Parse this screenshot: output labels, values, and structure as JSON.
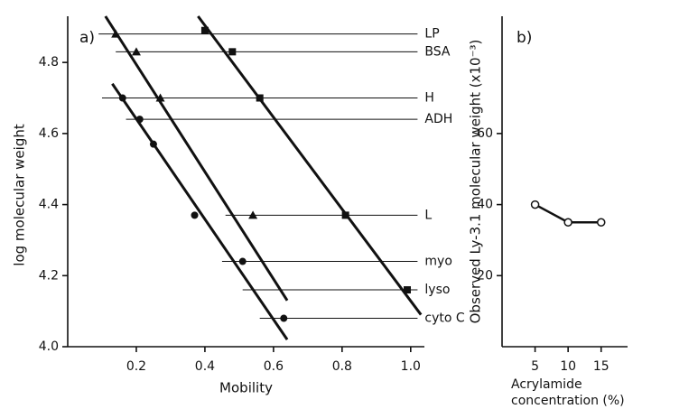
{
  "chart_data": [
    {
      "type": "scatter",
      "panel_label": "a)",
      "xlabel": "Mobility",
      "ylabel": "log molecular weight",
      "xlim": [
        0,
        1.04
      ],
      "ylim": [
        4.0,
        4.93
      ],
      "xticks": [
        0.2,
        0.4,
        0.6,
        0.8,
        {
          "value": 1,
          "label": "1.0"
        }
      ],
      "yticks": [
        {
          "value": 4,
          "label": "4.0"
        },
        4.2,
        4.4,
        4.6,
        4.8
      ],
      "series": [
        {
          "marker": "triangle",
          "color": "#111",
          "x": [
            0.14,
            0.2,
            0.27,
            0.54
          ],
          "values": [
            4.88,
            4.83,
            4.7,
            4.37
          ]
        },
        {
          "marker": "square",
          "color": "#111",
          "x": [
            0.4,
            0.48,
            0.56,
            0.81,
            0.99
          ],
          "values": [
            4.89,
            4.83,
            4.7,
            4.37,
            4.16
          ]
        },
        {
          "marker": "circle",
          "color": "#111",
          "x": [
            0.16,
            0.21,
            0.25,
            0.37,
            0.51,
            0.63
          ],
          "values": [
            4.7,
            4.64,
            4.57,
            4.37,
            4.24,
            4.08
          ]
        }
      ],
      "fit_lines": [
        {
          "x": [
            0.11,
            0.64
          ],
          "values": [
            4.93,
            4.13
          ]
        },
        {
          "x": [
            0.38,
            1.03
          ],
          "values": [
            4.93,
            4.09
          ]
        },
        {
          "x": [
            0.13,
            0.64
          ],
          "values": [
            4.74,
            4.02
          ]
        }
      ],
      "reference_lines": [
        {
          "label": "LP",
          "y": 4.88,
          "x": [
            0.09,
            1.02
          ]
        },
        {
          "label": "BSA",
          "y": 4.83,
          "x": [
            0.14,
            1.02
          ]
        },
        {
          "label": "H",
          "y": 4.7,
          "x": [
            0.1,
            1.02
          ]
        },
        {
          "label": "ADH",
          "y": 4.64,
          "x": [
            0.17,
            1.02
          ]
        },
        {
          "label": "L",
          "y": 4.37,
          "x": [
            0.46,
            1.02
          ]
        },
        {
          "label": "myo",
          "y": 4.24,
          "x": [
            0.45,
            1.02
          ]
        },
        {
          "label": "lyso",
          "y": 4.16,
          "x": [
            0.51,
            1.02
          ]
        },
        {
          "label": "cyto C",
          "y": 4.08,
          "x": [
            0.56,
            1.02
          ]
        }
      ]
    },
    {
      "type": "line",
      "panel_label": "b)",
      "xlabel": [
        "Acrylamide",
        "concentration (%)"
      ],
      "ylabel": "Observed Ly-3.1 molecular weight (x10⁻³)",
      "xlim": [
        0,
        19
      ],
      "ylim": [
        0,
        93
      ],
      "xticks": [
        5,
        10,
        15
      ],
      "yticks": [
        20,
        40,
        60
      ],
      "series": [
        {
          "marker": "open-circle",
          "color": "#111",
          "x": [
            5,
            10,
            15
          ],
          "values": [
            40,
            35,
            35
          ]
        }
      ]
    }
  ]
}
